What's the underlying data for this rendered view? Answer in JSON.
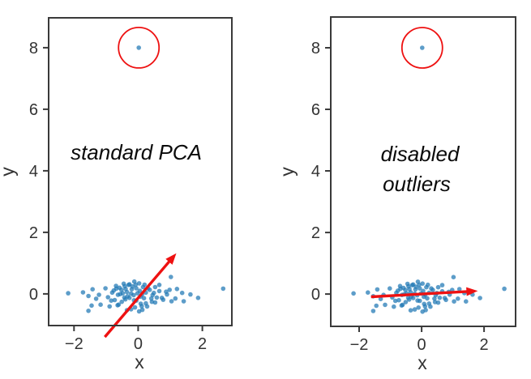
{
  "figure": {
    "background": "#ffffff",
    "colors": {
      "scatter_points": "#1f77b4",
      "scatter_opacity": 0.72,
      "highlight_red": "#ee1111",
      "axis": "#3a3a3a",
      "tick_label": "#333333",
      "annotation": "#0a0a0a"
    }
  },
  "chart_data": [
    {
      "type": "scatter",
      "panel": "left",
      "annotation": {
        "lines": [
          "standard PCA"
        ],
        "style": "italic"
      },
      "xlabel": "x",
      "ylabel": "y",
      "xlim": [
        -2.79,
        2.92
      ],
      "ylim": [
        -1.03,
        8.97
      ],
      "xticks": {
        "values": [
          -2,
          0,
          2
        ],
        "labels": [
          "−2",
          "0",
          "2"
        ]
      },
      "yticks": {
        "values": [
          0,
          2,
          4,
          6,
          8
        ],
        "labels": [
          "0",
          "2",
          "4",
          "6",
          "8"
        ]
      },
      "grid": false,
      "legend": false,
      "outlier_point": [
        0.02,
        8.0
      ],
      "outlier_circle": {
        "center": [
          0.02,
          8.0
        ],
        "radius_px": 25
      },
      "pca_arrow": {
        "from": [
          -1.04,
          -1.4
        ],
        "to": [
          1.19,
          1.32
        ]
      },
      "points": [
        [
          -2.18,
          0.02
        ],
        [
          -1.72,
          0.05
        ],
        [
          -1.55,
          -0.07
        ],
        [
          -1.55,
          -0.55
        ],
        [
          -1.45,
          -0.38
        ],
        [
          -1.42,
          0.15
        ],
        [
          -1.31,
          -0.16
        ],
        [
          -1.22,
          -0.03
        ],
        [
          -1.17,
          -0.35
        ],
        [
          -1.02,
          0.18
        ],
        [
          -0.94,
          -0.11
        ],
        [
          -0.89,
          -0.41
        ],
        [
          -0.84,
          -0.22
        ],
        [
          -0.81,
          0.04
        ],
        [
          -0.76,
          0.11
        ],
        [
          -0.73,
          -0.2
        ],
        [
          -0.69,
          0.26
        ],
        [
          -0.68,
          0.17
        ],
        [
          -0.64,
          -0.37
        ],
        [
          -0.63,
          -0.03
        ],
        [
          -0.61,
          -0.35
        ],
        [
          -0.58,
          0.2
        ],
        [
          -0.56,
          -0.01
        ],
        [
          -0.52,
          0.13
        ],
        [
          -0.51,
          -0.26
        ],
        [
          -0.48,
          0.02
        ],
        [
          -0.45,
          0.33
        ],
        [
          -0.43,
          -0.12
        ],
        [
          -0.42,
          0.25
        ],
        [
          -0.4,
          -0.18
        ],
        [
          -0.39,
          0.16
        ],
        [
          -0.35,
          0.06
        ],
        [
          -0.35,
          -0.53
        ],
        [
          -0.33,
          -0.08
        ],
        [
          -0.3,
          0.29
        ],
        [
          -0.27,
          0.31
        ],
        [
          -0.27,
          -0.13
        ],
        [
          -0.22,
          0.01
        ],
        [
          -0.22,
          -0.5
        ],
        [
          -0.2,
          0.15
        ],
        [
          -0.18,
          0.24
        ],
        [
          -0.14,
          -0.04
        ],
        [
          -0.13,
          -0.21
        ],
        [
          -0.12,
          0.4
        ],
        [
          -0.1,
          -0.44
        ],
        [
          -0.08,
          0.3
        ],
        [
          -0.06,
          0.18
        ],
        [
          -0.06,
          -0.22
        ],
        [
          -0.02,
          0.02
        ],
        [
          0.03,
          0.34
        ],
        [
          0.03,
          -0.57
        ],
        [
          0.05,
          0.1
        ],
        [
          0.07,
          -0.09
        ],
        [
          0.08,
          -0.32
        ],
        [
          0.11,
          -0.4
        ],
        [
          0.12,
          -0.02
        ],
        [
          0.13,
          -0.52
        ],
        [
          0.15,
          0.22
        ],
        [
          0.18,
          -0.14
        ],
        [
          0.2,
          0.3
        ],
        [
          0.24,
          0.04
        ],
        [
          0.24,
          -0.31
        ],
        [
          0.28,
          -0.41
        ],
        [
          0.31,
          0.18
        ],
        [
          0.36,
          0.13
        ],
        [
          0.41,
          -0.15
        ],
        [
          0.43,
          -0.26
        ],
        [
          0.45,
          -0.04
        ],
        [
          0.49,
          0.03
        ],
        [
          0.53,
          0.22
        ],
        [
          0.53,
          -0.28
        ],
        [
          0.58,
          -0.12
        ],
        [
          0.66,
          0.29
        ],
        [
          0.66,
          0.09
        ],
        [
          0.74,
          -0.13
        ],
        [
          0.78,
          -0.19
        ],
        [
          0.87,
          0.07
        ],
        [
          0.9,
          -0.02
        ],
        [
          0.98,
          0.13
        ],
        [
          1.02,
          0.55
        ],
        [
          1.04,
          -0.24
        ],
        [
          1.16,
          -0.15
        ],
        [
          1.21,
          0.16
        ],
        [
          1.37,
          0.03
        ],
        [
          1.42,
          -0.24
        ],
        [
          1.63,
          -0.02
        ],
        [
          1.87,
          -0.13
        ],
        [
          2.65,
          0.17
        ]
      ]
    },
    {
      "type": "scatter",
      "panel": "right",
      "annotation": {
        "lines": [
          "disabled",
          "outliers"
        ],
        "style": "italic"
      },
      "xlabel": "x",
      "ylabel": "y",
      "xlim": [
        -2.91,
        3.01
      ],
      "ylim": [
        -1.05,
        9.0
      ],
      "xticks": {
        "values": [
          -2,
          0,
          2
        ],
        "labels": [
          "−2",
          "0",
          "2"
        ]
      },
      "yticks": {
        "values": [
          0,
          2,
          4,
          6,
          8
        ],
        "labels": [
          "0",
          "2",
          "4",
          "6",
          "8"
        ]
      },
      "grid": false,
      "legend": false,
      "outlier_point": [
        0.02,
        8.0
      ],
      "outlier_circle": {
        "center": [
          0.02,
          8.0
        ],
        "radius_px": 25
      },
      "pca_arrow": {
        "from": [
          -1.62,
          -0.09
        ],
        "to": [
          1.8,
          0.1
        ]
      },
      "points": [
        [
          -2.18,
          0.02
        ],
        [
          -1.72,
          0.05
        ],
        [
          -1.55,
          -0.07
        ],
        [
          -1.55,
          -0.55
        ],
        [
          -1.45,
          -0.38
        ],
        [
          -1.42,
          0.15
        ],
        [
          -1.31,
          -0.16
        ],
        [
          -1.22,
          -0.03
        ],
        [
          -1.17,
          -0.35
        ],
        [
          -1.02,
          0.18
        ],
        [
          -0.94,
          -0.11
        ],
        [
          -0.89,
          -0.41
        ],
        [
          -0.84,
          -0.22
        ],
        [
          -0.81,
          0.04
        ],
        [
          -0.76,
          0.11
        ],
        [
          -0.73,
          -0.2
        ],
        [
          -0.69,
          0.26
        ],
        [
          -0.68,
          0.17
        ],
        [
          -0.64,
          -0.37
        ],
        [
          -0.63,
          -0.03
        ],
        [
          -0.61,
          -0.35
        ],
        [
          -0.58,
          0.2
        ],
        [
          -0.56,
          -0.01
        ],
        [
          -0.52,
          0.13
        ],
        [
          -0.51,
          -0.26
        ],
        [
          -0.48,
          0.02
        ],
        [
          -0.45,
          0.33
        ],
        [
          -0.43,
          -0.12
        ],
        [
          -0.42,
          0.25
        ],
        [
          -0.4,
          -0.18
        ],
        [
          -0.39,
          0.16
        ],
        [
          -0.35,
          0.06
        ],
        [
          -0.35,
          -0.53
        ],
        [
          -0.33,
          -0.08
        ],
        [
          -0.3,
          0.29
        ],
        [
          -0.27,
          0.31
        ],
        [
          -0.27,
          -0.13
        ],
        [
          -0.22,
          0.01
        ],
        [
          -0.22,
          -0.5
        ],
        [
          -0.2,
          0.15
        ],
        [
          -0.18,
          0.24
        ],
        [
          -0.14,
          -0.04
        ],
        [
          -0.13,
          -0.21
        ],
        [
          -0.12,
          0.4
        ],
        [
          -0.1,
          -0.44
        ],
        [
          -0.08,
          0.3
        ],
        [
          -0.06,
          0.18
        ],
        [
          -0.06,
          -0.22
        ],
        [
          -0.02,
          0.02
        ],
        [
          0.03,
          0.34
        ],
        [
          0.03,
          -0.57
        ],
        [
          0.05,
          0.1
        ],
        [
          0.07,
          -0.09
        ],
        [
          0.08,
          -0.32
        ],
        [
          0.11,
          -0.4
        ],
        [
          0.12,
          -0.02
        ],
        [
          0.13,
          -0.52
        ],
        [
          0.15,
          0.22
        ],
        [
          0.18,
          -0.14
        ],
        [
          0.2,
          0.3
        ],
        [
          0.24,
          0.04
        ],
        [
          0.24,
          -0.31
        ],
        [
          0.28,
          -0.41
        ],
        [
          0.31,
          0.18
        ],
        [
          0.36,
          0.13
        ],
        [
          0.41,
          -0.15
        ],
        [
          0.43,
          -0.26
        ],
        [
          0.45,
          -0.04
        ],
        [
          0.49,
          0.03
        ],
        [
          0.53,
          0.22
        ],
        [
          0.53,
          -0.28
        ],
        [
          0.58,
          -0.12
        ],
        [
          0.66,
          0.29
        ],
        [
          0.66,
          0.09
        ],
        [
          0.74,
          -0.13
        ],
        [
          0.78,
          -0.19
        ],
        [
          0.87,
          0.07
        ],
        [
          0.9,
          -0.02
        ],
        [
          0.98,
          0.13
        ],
        [
          1.02,
          0.55
        ],
        [
          1.04,
          -0.24
        ],
        [
          1.16,
          -0.15
        ],
        [
          1.21,
          0.16
        ],
        [
          1.37,
          0.03
        ],
        [
          1.42,
          -0.24
        ],
        [
          1.63,
          -0.02
        ],
        [
          1.87,
          -0.13
        ],
        [
          2.65,
          0.17
        ]
      ]
    }
  ]
}
